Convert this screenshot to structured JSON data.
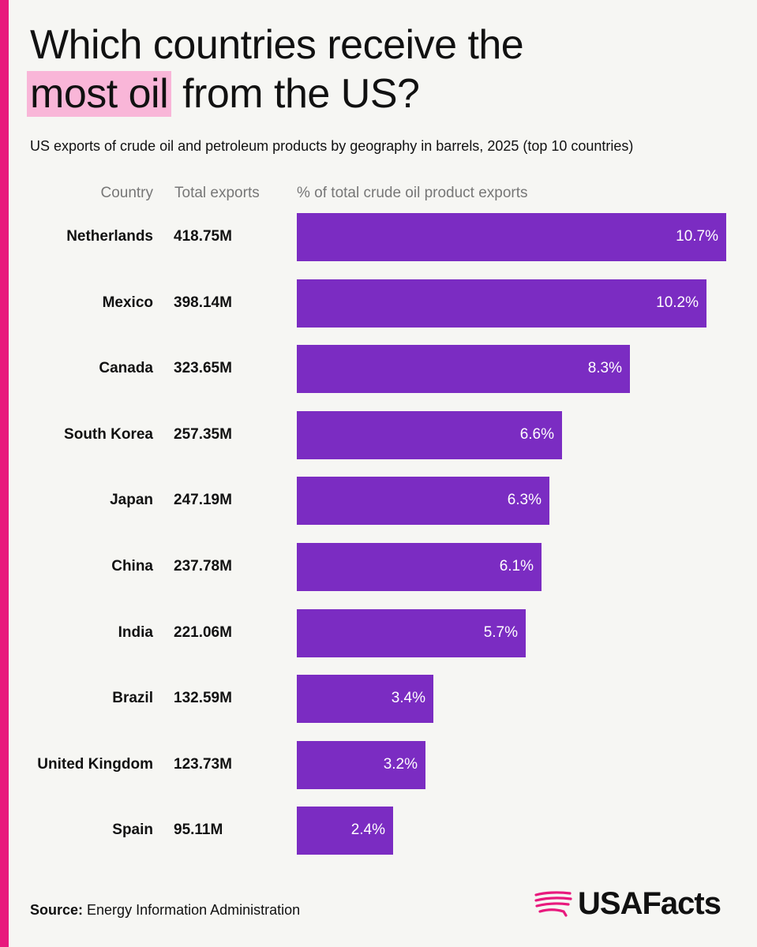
{
  "title": {
    "line1": "Which countries receive the",
    "highlight": "most oil",
    "line2_rest": " from the US?"
  },
  "subtitle": "US exports of crude oil and petroleum products by geography in barrels, 2025 (top 10 countries)",
  "columns": {
    "country": "Country",
    "total": "Total exports",
    "pct": "% of total crude oil product exports"
  },
  "source": {
    "label": "Source:",
    "text": " Energy Information Administration"
  },
  "brand": "USAFacts",
  "colors": {
    "accent": "#e8197d",
    "highlight": "#f9b6d8",
    "bar": "#7b2cc2"
  },
  "chart_data": {
    "type": "bar",
    "orientation": "horizontal",
    "categories": [
      "Netherlands",
      "Mexico",
      "Canada",
      "South Korea",
      "Japan",
      "China",
      "India",
      "Brazil",
      "United Kingdom",
      "Spain"
    ],
    "totals": [
      "418.75M",
      "398.14M",
      "323.65M",
      "257.35M",
      "247.19M",
      "237.78M",
      "221.06M",
      "132.59M",
      "123.73M",
      "95.11M"
    ],
    "values": [
      10.7,
      10.2,
      8.3,
      6.6,
      6.3,
      6.1,
      5.7,
      3.4,
      3.2,
      2.4
    ],
    "labels": [
      "10.7%",
      "10.2%",
      "8.3%",
      "6.6%",
      "6.3%",
      "6.1%",
      "5.7%",
      "3.4%",
      "3.2%",
      "2.4%"
    ]
  }
}
